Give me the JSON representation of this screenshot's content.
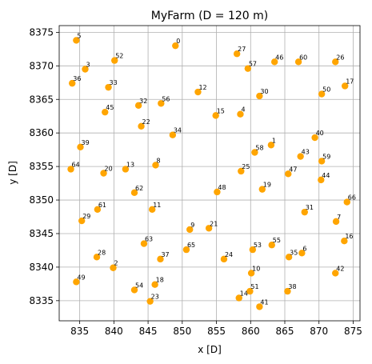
{
  "chart_data": {
    "type": "scatter",
    "title": "MyFarm (D = 120 m)",
    "xlabel": "x [D]",
    "ylabel": "y [D]",
    "xlim": [
      832,
      876
    ],
    "ylim": [
      8332,
      8376
    ],
    "xticks": [
      835,
      840,
      845,
      850,
      855,
      860,
      865,
      870,
      875
    ],
    "yticks": [
      8335,
      8340,
      8345,
      8350,
      8355,
      8360,
      8365,
      8370,
      8375
    ],
    "grid": true,
    "marker_color": "#ffa500",
    "points": [
      {
        "label": "0",
        "x": 849.0,
        "y": 8373.0
      },
      {
        "label": "1",
        "x": 863.0,
        "y": 8358.2
      },
      {
        "label": "2",
        "x": 839.9,
        "y": 8339.9
      },
      {
        "label": "3",
        "x": 835.8,
        "y": 8369.5
      },
      {
        "label": "4",
        "x": 858.5,
        "y": 8362.8
      },
      {
        "label": "5",
        "x": 834.5,
        "y": 8373.8
      },
      {
        "label": "6",
        "x": 867.5,
        "y": 8342.1
      },
      {
        "label": "7",
        "x": 872.5,
        "y": 8346.8
      },
      {
        "label": "8",
        "x": 846.1,
        "y": 8355.2
      },
      {
        "label": "9",
        "x": 851.1,
        "y": 8345.6
      },
      {
        "label": "10",
        "x": 860.1,
        "y": 8339.1
      },
      {
        "label": "11",
        "x": 845.6,
        "y": 8348.6
      },
      {
        "label": "12",
        "x": 852.3,
        "y": 8366.1
      },
      {
        "label": "13",
        "x": 841.7,
        "y": 8354.6
      },
      {
        "label": "14",
        "x": 858.3,
        "y": 8335.4
      },
      {
        "label": "15",
        "x": 854.9,
        "y": 8362.6
      },
      {
        "label": "16",
        "x": 873.7,
        "y": 8343.9
      },
      {
        "label": "17",
        "x": 873.8,
        "y": 8367.0
      },
      {
        "label": "18",
        "x": 846.0,
        "y": 8337.4
      },
      {
        "label": "19",
        "x": 861.7,
        "y": 8351.6
      },
      {
        "label": "20",
        "x": 838.5,
        "y": 8354.0
      },
      {
        "label": "21",
        "x": 853.9,
        "y": 8345.8
      },
      {
        "label": "22",
        "x": 844.0,
        "y": 8361.0
      },
      {
        "label": "23",
        "x": 845.3,
        "y": 8334.9
      },
      {
        "label": "24",
        "x": 856.1,
        "y": 8341.2
      },
      {
        "label": "25",
        "x": 858.6,
        "y": 8354.3
      },
      {
        "label": "26",
        "x": 872.4,
        "y": 8370.6
      },
      {
        "label": "27",
        "x": 858.0,
        "y": 8371.8
      },
      {
        "label": "28",
        "x": 837.5,
        "y": 8341.5
      },
      {
        "label": "29",
        "x": 835.3,
        "y": 8346.9
      },
      {
        "label": "30",
        "x": 861.3,
        "y": 8365.5
      },
      {
        "label": "31",
        "x": 867.9,
        "y": 8348.2
      },
      {
        "label": "32",
        "x": 843.6,
        "y": 8364.1
      },
      {
        "label": "33",
        "x": 839.2,
        "y": 8366.8
      },
      {
        "label": "34",
        "x": 848.6,
        "y": 8359.7
      },
      {
        "label": "35",
        "x": 865.6,
        "y": 8341.5
      },
      {
        "label": "36",
        "x": 833.9,
        "y": 8367.4
      },
      {
        "label": "37",
        "x": 846.8,
        "y": 8341.2
      },
      {
        "label": "38",
        "x": 865.4,
        "y": 8336.4
      },
      {
        "label": "39",
        "x": 835.1,
        "y": 8357.9
      },
      {
        "label": "40",
        "x": 869.4,
        "y": 8359.3
      },
      {
        "label": "41",
        "x": 861.3,
        "y": 8334.1
      },
      {
        "label": "42",
        "x": 872.4,
        "y": 8339.1
      },
      {
        "label": "43",
        "x": 867.3,
        "y": 8356.5
      },
      {
        "label": "44",
        "x": 870.3,
        "y": 8353.0
      },
      {
        "label": "45",
        "x": 838.7,
        "y": 8363.1
      },
      {
        "label": "46",
        "x": 863.5,
        "y": 8370.6
      },
      {
        "label": "47",
        "x": 865.5,
        "y": 8353.9
      },
      {
        "label": "48",
        "x": 855.1,
        "y": 8351.2
      },
      {
        "label": "49",
        "x": 834.5,
        "y": 8337.8
      },
      {
        "label": "50",
        "x": 870.4,
        "y": 8365.8
      },
      {
        "label": "51",
        "x": 859.9,
        "y": 8336.4
      },
      {
        "label": "52",
        "x": 840.1,
        "y": 8370.8
      },
      {
        "label": "53",
        "x": 860.3,
        "y": 8342.6
      },
      {
        "label": "54",
        "x": 843.0,
        "y": 8336.6
      },
      {
        "label": "55",
        "x": 863.1,
        "y": 8343.3
      },
      {
        "label": "56",
        "x": 846.9,
        "y": 8364.4
      },
      {
        "label": "57",
        "x": 859.6,
        "y": 8369.6
      },
      {
        "label": "58",
        "x": 860.6,
        "y": 8357.1
      },
      {
        "label": "59",
        "x": 870.4,
        "y": 8355.8
      },
      {
        "label": "60",
        "x": 867.0,
        "y": 8370.6
      },
      {
        "label": "61",
        "x": 837.6,
        "y": 8348.6
      },
      {
        "label": "62",
        "x": 843.0,
        "y": 8351.1
      },
      {
        "label": "63",
        "x": 844.4,
        "y": 8343.5
      },
      {
        "label": "64",
        "x": 833.7,
        "y": 8354.6
      },
      {
        "label": "65",
        "x": 850.6,
        "y": 8342.6
      },
      {
        "label": "66",
        "x": 874.1,
        "y": 8349.7
      }
    ]
  }
}
